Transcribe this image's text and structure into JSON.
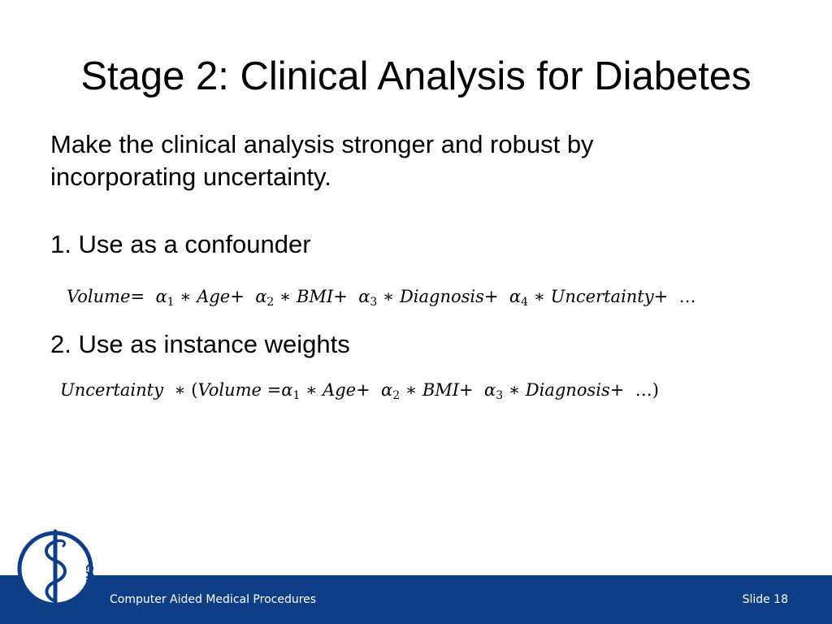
{
  "slide": {
    "title": "Stage 2: Clinical Analysis for Diabetes",
    "intro": "Make the clinical analysis stronger and robust by incorporating uncertainty.",
    "points": [
      {
        "label": "1. Use as a confounder"
      },
      {
        "label": "2. Use as instance weights"
      }
    ]
  },
  "equations": {
    "eq1": {
      "volume": "Volume",
      "eq": "=",
      "plus": "+",
      "times": "∗",
      "alpha": "α",
      "s1": "1",
      "s2": "2",
      "s3": "3",
      "s4": "4",
      "age": "Age",
      "bmi": "BMI",
      "diagnosis": "Diagnosis",
      "uncertainty": "Uncertainty",
      "ellipsis": "…"
    },
    "eq2": {
      "uncertainty": "Uncertainty",
      "times": "∗",
      "open": "(",
      "close": ")",
      "volume": "Volume",
      "eq": "=",
      "plus": "+",
      "alpha": "α",
      "s1": "1",
      "s2": "2",
      "s3": "3",
      "age": "Age",
      "bmi": "BMI",
      "diagnosis": "Diagnosis",
      "ellipsis": "…"
    }
  },
  "footer": {
    "institute": "Computer Aided Medical Procedures",
    "slide_number": "Slide 18"
  },
  "logo": {
    "text": "CAMP",
    "icon": "caduceus-icon"
  },
  "colors": {
    "footer_bar": "#0e3f86",
    "logo": "#0e3f86",
    "text": "#000000",
    "footer_text": "#ffffff"
  }
}
